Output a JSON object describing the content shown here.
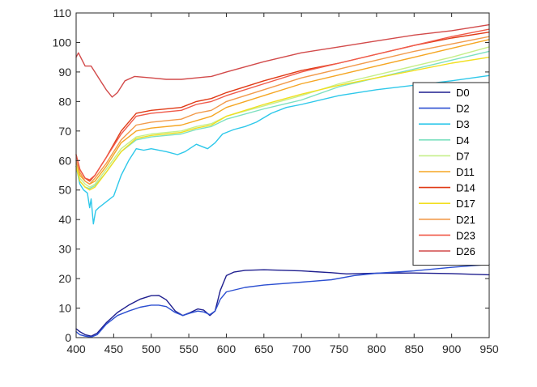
{
  "chart_data": {
    "type": "line",
    "title": "",
    "xlabel": "",
    "ylabel": "",
    "xlim": [
      400,
      950
    ],
    "ylim": [
      0,
      110
    ],
    "xticks": [
      400,
      450,
      500,
      550,
      600,
      650,
      700,
      750,
      800,
      850,
      900,
      950
    ],
    "yticks": [
      0,
      10,
      20,
      30,
      40,
      50,
      60,
      70,
      80,
      90,
      100,
      110
    ],
    "grid": false,
    "legend_position": "right",
    "series": [
      {
        "name": "D0",
        "color": "#1f1f8f",
        "points": [
          [
            400,
            3
          ],
          [
            405,
            2
          ],
          [
            412,
            1
          ],
          [
            420,
            0.5
          ],
          [
            428,
            1.5
          ],
          [
            440,
            5
          ],
          [
            455,
            8.5
          ],
          [
            470,
            11
          ],
          [
            485,
            13
          ],
          [
            500,
            14.2
          ],
          [
            510,
            14.3
          ],
          [
            520,
            12.8
          ],
          [
            532,
            9
          ],
          [
            542,
            7.5
          ],
          [
            552,
            8.5
          ],
          [
            562,
            9.7
          ],
          [
            570,
            9.3
          ],
          [
            578,
            7.5
          ],
          [
            585,
            9
          ],
          [
            592,
            16
          ],
          [
            600,
            21
          ],
          [
            610,
            22.2
          ],
          [
            625,
            22.8
          ],
          [
            650,
            23
          ],
          [
            700,
            22.6
          ],
          [
            740,
            22
          ],
          [
            760,
            21.6
          ],
          [
            800,
            21.8
          ],
          [
            850,
            21.9
          ],
          [
            900,
            21.7
          ],
          [
            950,
            21.3
          ]
        ]
      },
      {
        "name": "D2",
        "color": "#2c4fd1",
        "points": [
          [
            400,
            2
          ],
          [
            405,
            1
          ],
          [
            412,
            0.5
          ],
          [
            420,
            0.2
          ],
          [
            428,
            1
          ],
          [
            440,
            4.5
          ],
          [
            455,
            7.5
          ],
          [
            470,
            9
          ],
          [
            485,
            10.3
          ],
          [
            500,
            11
          ],
          [
            510,
            11
          ],
          [
            520,
            10.5
          ],
          [
            532,
            8.5
          ],
          [
            542,
            7.5
          ],
          [
            552,
            8.3
          ],
          [
            562,
            9
          ],
          [
            570,
            8.7
          ],
          [
            578,
            7.8
          ],
          [
            585,
            9
          ],
          [
            592,
            13
          ],
          [
            600,
            15.5
          ],
          [
            625,
            17
          ],
          [
            650,
            17.8
          ],
          [
            700,
            18.8
          ],
          [
            740,
            19.6
          ],
          [
            770,
            21
          ],
          [
            800,
            21.8
          ],
          [
            850,
            22.6
          ],
          [
            900,
            23.8
          ],
          [
            950,
            24.8
          ]
        ]
      },
      {
        "name": "D3",
        "color": "#2ec8ea",
        "points": [
          [
            400,
            58
          ],
          [
            405,
            52
          ],
          [
            410,
            50
          ],
          [
            415,
            49
          ],
          [
            418,
            44
          ],
          [
            420,
            47
          ],
          [
            423,
            38.5
          ],
          [
            426,
            43
          ],
          [
            430,
            44
          ],
          [
            440,
            46
          ],
          [
            450,
            48
          ],
          [
            460,
            55
          ],
          [
            470,
            60
          ],
          [
            480,
            64
          ],
          [
            490,
            63.5
          ],
          [
            500,
            64
          ],
          [
            520,
            63
          ],
          [
            535,
            62
          ],
          [
            545,
            63
          ],
          [
            560,
            65.5
          ],
          [
            575,
            64
          ],
          [
            585,
            66
          ],
          [
            595,
            69
          ],
          [
            610,
            70.5
          ],
          [
            625,
            71.5
          ],
          [
            640,
            73
          ],
          [
            660,
            76
          ],
          [
            680,
            78
          ],
          [
            700,
            79
          ],
          [
            750,
            82
          ],
          [
            800,
            84
          ],
          [
            850,
            85.5
          ],
          [
            900,
            87
          ],
          [
            950,
            88.8
          ]
        ]
      },
      {
        "name": "D4",
        "color": "#7de0c0",
        "points": [
          [
            400,
            58
          ],
          [
            405,
            53
          ],
          [
            412,
            51
          ],
          [
            418,
            50.5
          ],
          [
            425,
            51.5
          ],
          [
            440,
            56
          ],
          [
            460,
            63
          ],
          [
            480,
            67
          ],
          [
            500,
            68
          ],
          [
            540,
            69
          ],
          [
            560,
            70.5
          ],
          [
            580,
            71.5
          ],
          [
            600,
            74
          ],
          [
            650,
            77.5
          ],
          [
            700,
            80.5
          ],
          [
            750,
            85
          ],
          [
            800,
            88
          ],
          [
            850,
            91
          ],
          [
            900,
            94
          ],
          [
            950,
            97
          ]
        ]
      },
      {
        "name": "D7",
        "color": "#c6ef8a",
        "points": [
          [
            400,
            59
          ],
          [
            405,
            54
          ],
          [
            412,
            52
          ],
          [
            418,
            51
          ],
          [
            425,
            52
          ],
          [
            440,
            57
          ],
          [
            460,
            64
          ],
          [
            480,
            68
          ],
          [
            500,
            69
          ],
          [
            540,
            70
          ],
          [
            560,
            71.5
          ],
          [
            580,
            72.5
          ],
          [
            600,
            75
          ],
          [
            650,
            78.5
          ],
          [
            700,
            82
          ],
          [
            750,
            86
          ],
          [
            800,
            89
          ],
          [
            850,
            92
          ],
          [
            900,
            95
          ],
          [
            950,
            98.5
          ]
        ]
      },
      {
        "name": "D11",
        "color": "#f5a623",
        "points": [
          [
            400,
            60
          ],
          [
            405,
            55
          ],
          [
            412,
            53
          ],
          [
            418,
            52
          ],
          [
            425,
            53
          ],
          [
            440,
            58
          ],
          [
            460,
            66
          ],
          [
            480,
            70
          ],
          [
            500,
            71
          ],
          [
            540,
            72
          ],
          [
            560,
            73.5
          ],
          [
            580,
            75
          ],
          [
            600,
            78
          ],
          [
            650,
            82
          ],
          [
            700,
            86
          ],
          [
            750,
            89
          ],
          [
            800,
            92
          ],
          [
            850,
            95
          ],
          [
            900,
            98
          ],
          [
            950,
            101
          ]
        ]
      },
      {
        "name": "D14",
        "color": "#e03a16",
        "points": [
          [
            400,
            62
          ],
          [
            405,
            57
          ],
          [
            412,
            54
          ],
          [
            418,
            53
          ],
          [
            425,
            55
          ],
          [
            440,
            61
          ],
          [
            460,
            70
          ],
          [
            480,
            76
          ],
          [
            500,
            77
          ],
          [
            540,
            78
          ],
          [
            560,
            80
          ],
          [
            580,
            81
          ],
          [
            600,
            83
          ],
          [
            650,
            87
          ],
          [
            700,
            90.5
          ],
          [
            750,
            93
          ],
          [
            800,
            96
          ],
          [
            850,
            99
          ],
          [
            900,
            101.5
          ],
          [
            950,
            103.5
          ]
        ]
      },
      {
        "name": "D17",
        "color": "#f2df20",
        "points": [
          [
            400,
            58
          ],
          [
            405,
            53
          ],
          [
            412,
            51
          ],
          [
            418,
            50
          ],
          [
            425,
            51
          ],
          [
            440,
            56
          ],
          [
            460,
            63
          ],
          [
            480,
            67.5
          ],
          [
            500,
            68.5
          ],
          [
            540,
            69.5
          ],
          [
            560,
            71
          ],
          [
            580,
            72
          ],
          [
            600,
            75
          ],
          [
            650,
            79
          ],
          [
            700,
            82.5
          ],
          [
            750,
            85.5
          ],
          [
            800,
            88
          ],
          [
            850,
            90.5
          ],
          [
            900,
            93
          ],
          [
            950,
            95
          ]
        ]
      },
      {
        "name": "D21",
        "color": "#f29a4a",
        "points": [
          [
            400,
            60
          ],
          [
            405,
            56
          ],
          [
            412,
            53
          ],
          [
            418,
            52
          ],
          [
            425,
            54
          ],
          [
            440,
            59
          ],
          [
            460,
            67
          ],
          [
            480,
            72
          ],
          [
            500,
            73
          ],
          [
            540,
            74
          ],
          [
            560,
            76
          ],
          [
            580,
            77
          ],
          [
            600,
            80
          ],
          [
            650,
            84
          ],
          [
            700,
            88
          ],
          [
            750,
            91
          ],
          [
            800,
            94
          ],
          [
            850,
            97
          ],
          [
            900,
            99.5
          ],
          [
            950,
            102
          ]
        ]
      },
      {
        "name": "D23",
        "color": "#f05a4a",
        "points": [
          [
            400,
            62
          ],
          [
            405,
            57
          ],
          [
            412,
            54
          ],
          [
            418,
            53.5
          ],
          [
            425,
            55
          ],
          [
            440,
            61
          ],
          [
            460,
            69
          ],
          [
            480,
            75
          ],
          [
            500,
            76
          ],
          [
            540,
            77
          ],
          [
            560,
            79
          ],
          [
            580,
            80
          ],
          [
            600,
            82
          ],
          [
            650,
            86
          ],
          [
            700,
            90
          ],
          [
            750,
            93
          ],
          [
            800,
            96
          ],
          [
            850,
            99
          ],
          [
            900,
            102
          ],
          [
            950,
            104.5
          ]
        ]
      },
      {
        "name": "D26",
        "color": "#d24a4a",
        "points": [
          [
            400,
            95
          ],
          [
            403,
            96.5
          ],
          [
            408,
            94
          ],
          [
            412,
            92
          ],
          [
            420,
            92
          ],
          [
            430,
            88
          ],
          [
            440,
            84
          ],
          [
            448,
            81.5
          ],
          [
            455,
            83
          ],
          [
            465,
            87
          ],
          [
            478,
            88.5
          ],
          [
            500,
            88
          ],
          [
            520,
            87.5
          ],
          [
            540,
            87.5
          ],
          [
            560,
            88
          ],
          [
            580,
            88.5
          ],
          [
            600,
            90
          ],
          [
            650,
            93.5
          ],
          [
            700,
            96.5
          ],
          [
            750,
            98.5
          ],
          [
            800,
            100.5
          ],
          [
            850,
            102.5
          ],
          [
            900,
            104
          ],
          [
            950,
            106
          ]
        ]
      }
    ]
  }
}
